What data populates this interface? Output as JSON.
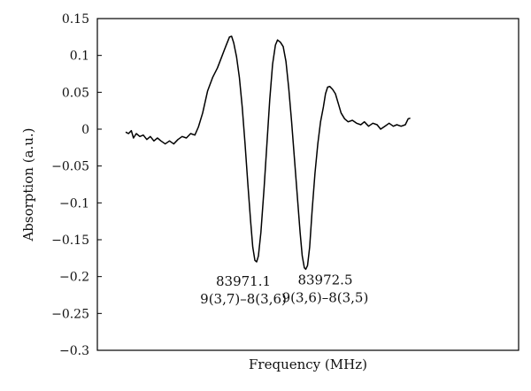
{
  "chart_data": {
    "type": "line",
    "title": "",
    "xlabel": "Frequency (MHz)",
    "ylabel": "Absorption (a.u.)",
    "ylim": [
      -0.3,
      0.15
    ],
    "yticks": [
      0.15,
      0.1,
      0.05,
      0,
      -0.05,
      -0.1,
      -0.15,
      -0.2,
      -0.25,
      -0.3
    ],
    "ytick_labels": [
      "0.15",
      "0.1",
      "0.05",
      "0",
      "−0.05",
      "−0.1",
      "−0.15",
      "−0.2",
      "−0.25",
      "−0.3"
    ],
    "x_ticks_shown": false,
    "grid": false,
    "legend": "none",
    "series": [
      {
        "color": "#000000",
        "points": [
          [
            0.0,
            -0.004
          ],
          [
            0.008,
            -0.006
          ],
          [
            0.016,
            -0.002
          ],
          [
            0.022,
            -0.012
          ],
          [
            0.03,
            -0.006
          ],
          [
            0.04,
            -0.01
          ],
          [
            0.05,
            -0.008
          ],
          [
            0.06,
            -0.014
          ],
          [
            0.07,
            -0.01
          ],
          [
            0.08,
            -0.016
          ],
          [
            0.09,
            -0.012
          ],
          [
            0.1,
            -0.016
          ],
          [
            0.112,
            -0.02
          ],
          [
            0.124,
            -0.016
          ],
          [
            0.136,
            -0.02
          ],
          [
            0.148,
            -0.014
          ],
          [
            0.16,
            -0.01
          ],
          [
            0.172,
            -0.012
          ],
          [
            0.184,
            -0.006
          ],
          [
            0.196,
            -0.008
          ],
          [
            0.206,
            0.003
          ],
          [
            0.218,
            0.022
          ],
          [
            0.232,
            0.052
          ],
          [
            0.246,
            0.07
          ],
          [
            0.26,
            0.083
          ],
          [
            0.272,
            0.098
          ],
          [
            0.284,
            0.113
          ],
          [
            0.294,
            0.125
          ],
          [
            0.3,
            0.126
          ],
          [
            0.306,
            0.117
          ],
          [
            0.314,
            0.098
          ],
          [
            0.322,
            0.07
          ],
          [
            0.33,
            0.03
          ],
          [
            0.338,
            -0.02
          ],
          [
            0.346,
            -0.075
          ],
          [
            0.354,
            -0.125
          ],
          [
            0.36,
            -0.16
          ],
          [
            0.366,
            -0.178
          ],
          [
            0.371,
            -0.18
          ],
          [
            0.376,
            -0.172
          ],
          [
            0.383,
            -0.14
          ],
          [
            0.392,
            -0.08
          ],
          [
            0.4,
            -0.02
          ],
          [
            0.408,
            0.04
          ],
          [
            0.416,
            0.088
          ],
          [
            0.424,
            0.114
          ],
          [
            0.43,
            0.121
          ],
          [
            0.438,
            0.118
          ],
          [
            0.446,
            0.112
          ],
          [
            0.454,
            0.092
          ],
          [
            0.462,
            0.055
          ],
          [
            0.47,
            0.01
          ],
          [
            0.478,
            -0.04
          ],
          [
            0.486,
            -0.09
          ],
          [
            0.494,
            -0.14
          ],
          [
            0.5,
            -0.172
          ],
          [
            0.506,
            -0.188
          ],
          [
            0.51,
            -0.19
          ],
          [
            0.515,
            -0.185
          ],
          [
            0.521,
            -0.16
          ],
          [
            0.528,
            -0.11
          ],
          [
            0.536,
            -0.06
          ],
          [
            0.544,
            -0.02
          ],
          [
            0.552,
            0.01
          ],
          [
            0.56,
            0.03
          ],
          [
            0.566,
            0.048
          ],
          [
            0.572,
            0.057
          ],
          [
            0.578,
            0.058
          ],
          [
            0.586,
            0.054
          ],
          [
            0.594,
            0.048
          ],
          [
            0.602,
            0.035
          ],
          [
            0.61,
            0.022
          ],
          [
            0.62,
            0.014
          ],
          [
            0.63,
            0.01
          ],
          [
            0.642,
            0.012
          ],
          [
            0.654,
            0.008
          ],
          [
            0.666,
            0.006
          ],
          [
            0.676,
            0.01
          ],
          [
            0.688,
            0.004
          ],
          [
            0.7,
            0.008
          ],
          [
            0.712,
            0.006
          ],
          [
            0.722,
            0.0
          ],
          [
            0.734,
            0.004
          ],
          [
            0.746,
            0.008
          ],
          [
            0.758,
            0.004
          ],
          [
            0.768,
            0.006
          ],
          [
            0.78,
            0.004
          ],
          [
            0.792,
            0.006
          ],
          [
            0.8,
            0.014
          ],
          [
            0.806,
            0.015
          ]
        ]
      }
    ],
    "annotations": [
      {
        "x": 0.371,
        "y": -0.18,
        "line1": "83971.1",
        "line2": "9(3,7)–8(3,6)"
      },
      {
        "x": 0.51,
        "y": -0.19,
        "line1": "83972.5",
        "line2": "9(3,6)–8(3,5)"
      }
    ]
  }
}
